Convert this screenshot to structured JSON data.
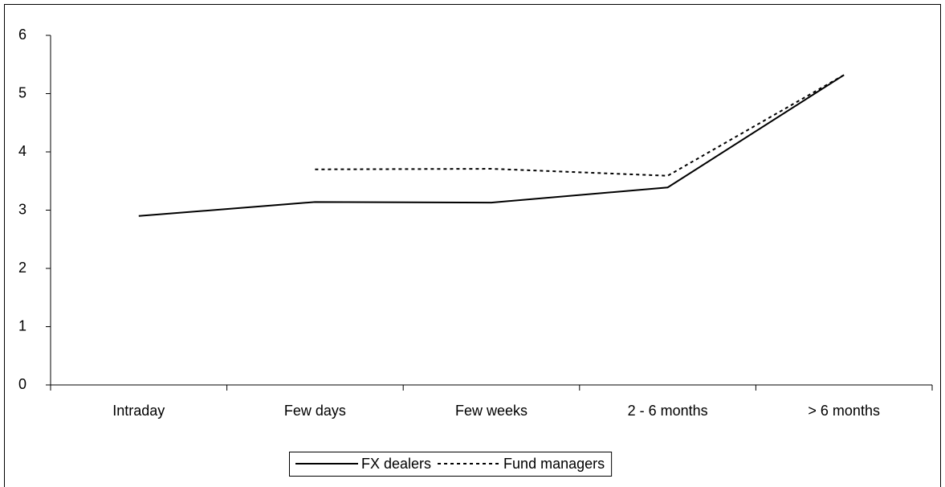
{
  "chart_data": {
    "type": "line",
    "categories": [
      "Intraday",
      "Few days",
      "Few weeks",
      "2 - 6 months",
      "> 6 months"
    ],
    "series": [
      {
        "name": "FX dealers",
        "color": "#000000",
        "dash": "solid",
        "values": [
          2.9,
          3.14,
          3.13,
          3.39,
          5.32
        ]
      },
      {
        "name": "Fund managers",
        "color": "#000000",
        "dash": "dotted",
        "values": [
          null,
          3.7,
          3.71,
          3.59,
          5.32
        ]
      }
    ],
    "ylim": [
      0,
      6
    ],
    "yticks": [
      0,
      1,
      2,
      3,
      4,
      5,
      6
    ],
    "grid": false,
    "legend": "bottom"
  }
}
